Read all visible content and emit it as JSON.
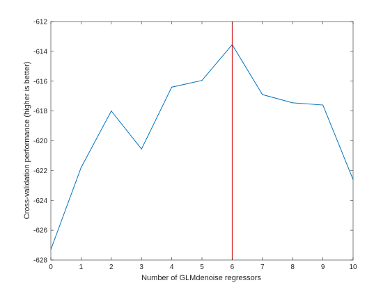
{
  "chart_data": {
    "type": "line",
    "title": "",
    "xlabel": "Number of GLMdenoise regressors",
    "ylabel": "Cross-validation performance (higher is better)",
    "xlim": [
      0,
      10
    ],
    "ylim": [
      -628,
      -612
    ],
    "xticks": [
      0,
      1,
      2,
      3,
      4,
      5,
      6,
      7,
      8,
      9,
      10
    ],
    "yticks": [
      -628,
      -626,
      -624,
      -622,
      -620,
      -618,
      -616,
      -614,
      -612
    ],
    "grid": false,
    "series": [
      {
        "color": "#0072bd",
        "x": [
          0,
          1,
          2,
          3,
          4,
          5,
          6,
          7,
          8,
          9,
          10
        ],
        "y": [
          -627.3,
          -621.8,
          -618.0,
          -620.55,
          -616.4,
          -615.95,
          -613.55,
          -616.9,
          -617.45,
          -617.6,
          -622.6
        ]
      }
    ],
    "vline": {
      "x": 6,
      "color": "#cc0000"
    }
  }
}
